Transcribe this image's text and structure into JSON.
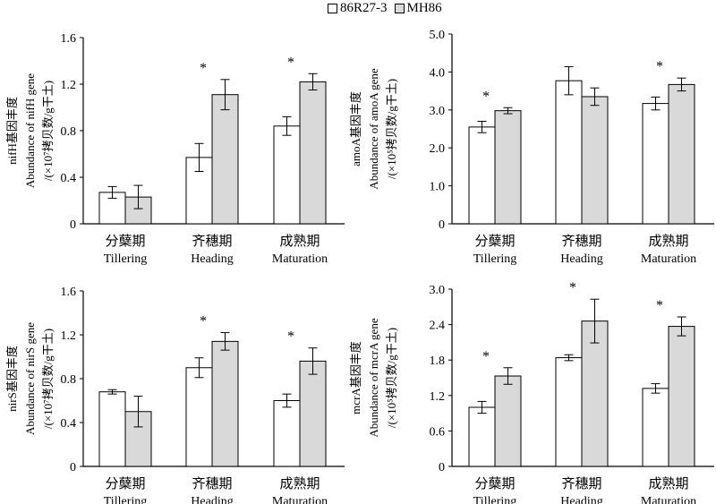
{
  "legend": {
    "items": [
      {
        "label": "86R27-3",
        "color": "#ffffff"
      },
      {
        "label": "MH86",
        "color": "#d9d9d9"
      }
    ]
  },
  "chart_data": [
    {
      "type": "bar",
      "categories": [
        "分蘖期",
        "齐穗期",
        "成熟期"
      ],
      "categories_en": [
        "Tillering",
        "Heading",
        "Maturation"
      ],
      "ylabel_lines": [
        "nifH基因丰度",
        "Abundance of nifH gene",
        "/(×10⁷拷贝数/g干土)"
      ],
      "ylim": [
        0,
        1.6
      ],
      "yticks": [
        "0",
        "0.4",
        "0.8",
        "1.2",
        "1.6"
      ],
      "series": [
        {
          "name": "86R27-3",
          "values": [
            0.27,
            0.57,
            0.84
          ],
          "errors": [
            0.05,
            0.12,
            0.08
          ]
        },
        {
          "name": "MH86",
          "values": [
            0.23,
            1.11,
            1.22
          ],
          "errors": [
            0.1,
            0.13,
            0.07
          ]
        }
      ],
      "significance": [
        "",
        "*",
        "*"
      ]
    },
    {
      "type": "bar",
      "categories": [
        "分蘖期",
        "齐穗期",
        "成熟期"
      ],
      "categories_en": [
        "Tillering",
        "Heading",
        "Maturation"
      ],
      "ylabel_lines": [
        "amoA基因丰度",
        "Abundance of amoA gene",
        "/(×10⁵拷贝数/g干土)"
      ],
      "ylim": [
        0,
        5.0
      ],
      "yticks": [
        "0",
        "1.0",
        "2.0",
        "3.0",
        "4.0",
        "5.0"
      ],
      "series": [
        {
          "name": "86R27-3",
          "values": [
            2.55,
            3.77,
            3.17
          ],
          "errors": [
            0.15,
            0.37,
            0.17
          ]
        },
        {
          "name": "MH86",
          "values": [
            2.98,
            3.35,
            3.67
          ],
          "errors": [
            0.08,
            0.23,
            0.17
          ]
        }
      ],
      "significance": [
        "*",
        "",
        "*"
      ]
    },
    {
      "type": "bar",
      "categories": [
        "分蘖期",
        "齐穗期",
        "成熟期"
      ],
      "categories_en": [
        "Tillering",
        "Heading",
        "Maturation"
      ],
      "ylabel_lines": [
        "nirS基因丰度",
        "Abundance of nirS gene",
        "/(×10⁷拷贝数/g干土)"
      ],
      "ylim": [
        0,
        1.6
      ],
      "yticks": [
        "0",
        "0.4",
        "0.8",
        "1.2",
        "1.6"
      ],
      "series": [
        {
          "name": "86R27-3",
          "values": [
            0.68,
            0.9,
            0.6
          ],
          "errors": [
            0.02,
            0.09,
            0.06
          ]
        },
        {
          "name": "MH86",
          "values": [
            0.5,
            1.14,
            0.96
          ],
          "errors": [
            0.14,
            0.08,
            0.12
          ]
        }
      ],
      "significance": [
        "",
        "*",
        "*"
      ]
    },
    {
      "type": "bar",
      "categories": [
        "分蘖期",
        "齐穗期",
        "成熟期"
      ],
      "categories_en": [
        "Tillering",
        "Heading",
        "Maturation"
      ],
      "ylabel_lines": [
        "mcrA基因丰度",
        "Abundance of mcrA gene",
        "/(×10⁵拷贝数/g干土)"
      ],
      "ylim": [
        0,
        3.0
      ],
      "yticks": [
        "0",
        "0.6",
        "1.2",
        "1.8",
        "2.4",
        "3.0"
      ],
      "series": [
        {
          "name": "86R27-3",
          "values": [
            1.0,
            1.84,
            1.32
          ],
          "errors": [
            0.1,
            0.05,
            0.08
          ]
        },
        {
          "name": "MH86",
          "values": [
            1.53,
            2.46,
            2.37
          ],
          "errors": [
            0.14,
            0.37,
            0.16
          ]
        }
      ],
      "significance": [
        "*",
        "*",
        "*"
      ]
    }
  ]
}
